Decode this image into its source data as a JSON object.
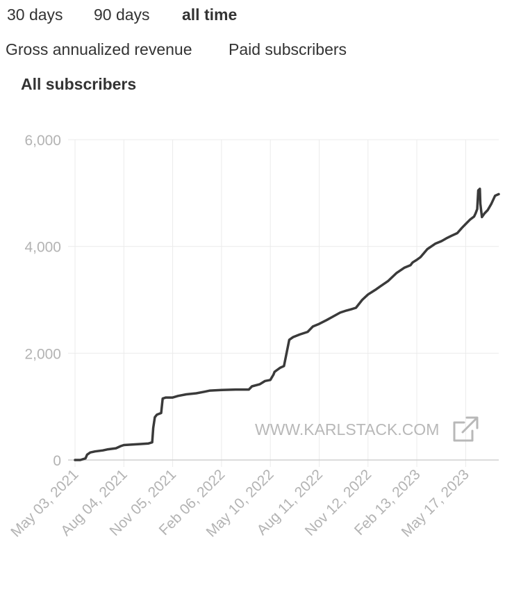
{
  "range_tabs": [
    {
      "label": "30 days",
      "active": false
    },
    {
      "label": "90 days",
      "active": false
    },
    {
      "label": "all time",
      "active": true
    }
  ],
  "metric_tabs": [
    {
      "label": "Gross annualized revenue",
      "active": false
    },
    {
      "label": "Paid subscribers",
      "active": false
    },
    {
      "label": "All subscribers",
      "active": true
    }
  ],
  "watermark": {
    "text": "WWW.KARLSTACK.COM",
    "icon": "external-link-icon"
  },
  "colors": {
    "line": "#3a3a3a",
    "grid": "#ebebeb",
    "axis_text": "#b3b3b3",
    "watermark": "#b8b8b8"
  },
  "chart_data": {
    "type": "line",
    "title": "",
    "xlabel": "",
    "ylabel": "",
    "ylim": [
      0,
      6000
    ],
    "yticks": [
      0,
      2000,
      4000,
      6000
    ],
    "ytick_labels": [
      "0",
      "2,000",
      "4,000",
      "6,000"
    ],
    "xticks": [
      "2021-05-03",
      "2021-08-04",
      "2021-11-05",
      "2022-02-06",
      "2022-05-10",
      "2022-08-11",
      "2022-11-12",
      "2023-02-13",
      "2023-05-17"
    ],
    "xtick_labels": [
      "May 03, 2021",
      "Aug 04, 2021",
      "Nov 05, 2021",
      "Feb 06, 2022",
      "May 10, 2022",
      "Aug 11, 2022",
      "Nov 12, 2022",
      "Feb 13, 2023",
      "May 17, 2023"
    ],
    "xlim": [
      "2021-05-03",
      "2023-07-19"
    ],
    "grid": true,
    "series": [
      {
        "x": [
          "2021-05-03",
          "2021-05-13",
          "2021-05-23",
          "2021-05-26",
          "2021-06-01",
          "2021-06-10",
          "2021-06-25",
          "2021-07-05",
          "2021-07-20",
          "2021-07-29",
          "2021-08-04",
          "2021-08-20",
          "2021-09-05",
          "2021-09-20",
          "2021-09-27",
          "2021-09-29",
          "2021-10-02",
          "2021-10-06",
          "2021-10-14",
          "2021-10-17",
          "2021-10-23",
          "2021-11-05",
          "2021-11-15",
          "2021-12-01",
          "2021-12-20",
          "2022-01-05",
          "2022-01-15",
          "2022-02-06",
          "2022-03-05",
          "2022-03-30",
          "2022-04-05",
          "2022-04-20",
          "2022-04-30",
          "2022-05-10",
          "2022-05-16",
          "2022-05-18",
          "2022-05-22",
          "2022-05-29",
          "2022-06-05",
          "2022-06-15",
          "2022-06-22",
          "2022-07-05",
          "2022-07-20",
          "2022-07-30",
          "2022-08-11",
          "2022-08-25",
          "2022-09-05",
          "2022-09-20",
          "2022-10-02",
          "2022-10-10",
          "2022-10-20",
          "2022-11-01",
          "2022-11-12",
          "2022-11-20",
          "2022-11-28",
          "2022-12-05",
          "2022-12-20",
          "2023-01-05",
          "2023-01-20",
          "2023-02-01",
          "2023-02-05",
          "2023-02-13",
          "2023-02-20",
          "2023-03-05",
          "2023-03-20",
          "2023-04-01",
          "2023-04-10",
          "2023-04-20",
          "2023-05-01",
          "2023-05-10",
          "2023-05-17",
          "2023-05-25",
          "2023-06-02",
          "2023-06-05",
          "2023-06-08",
          "2023-06-10",
          "2023-06-13",
          "2023-06-14",
          "2023-06-17",
          "2023-06-22",
          "2023-06-28",
          "2023-07-05",
          "2023-07-12",
          "2023-07-19"
        ],
        "y": [
          0,
          0,
          30,
          100,
          140,
          160,
          180,
          200,
          220,
          260,
          280,
          290,
          300,
          310,
          330,
          600,
          800,
          850,
          880,
          1150,
          1170,
          1170,
          1200,
          1230,
          1250,
          1280,
          1300,
          1310,
          1320,
          1320,
          1380,
          1420,
          1480,
          1500,
          1600,
          1650,
          1680,
          1730,
          1760,
          2250,
          2300,
          2350,
          2400,
          2500,
          2550,
          2620,
          2680,
          2760,
          2800,
          2820,
          2850,
          3000,
          3100,
          3150,
          3200,
          3250,
          3350,
          3500,
          3600,
          3650,
          3700,
          3750,
          3800,
          3950,
          4050,
          4100,
          4150,
          4200,
          4250,
          4350,
          4420,
          4500,
          4560,
          4620,
          4700,
          5050,
          5080,
          4800,
          4550,
          4620,
          4680,
          4800,
          4950,
          4980
        ]
      }
    ]
  }
}
